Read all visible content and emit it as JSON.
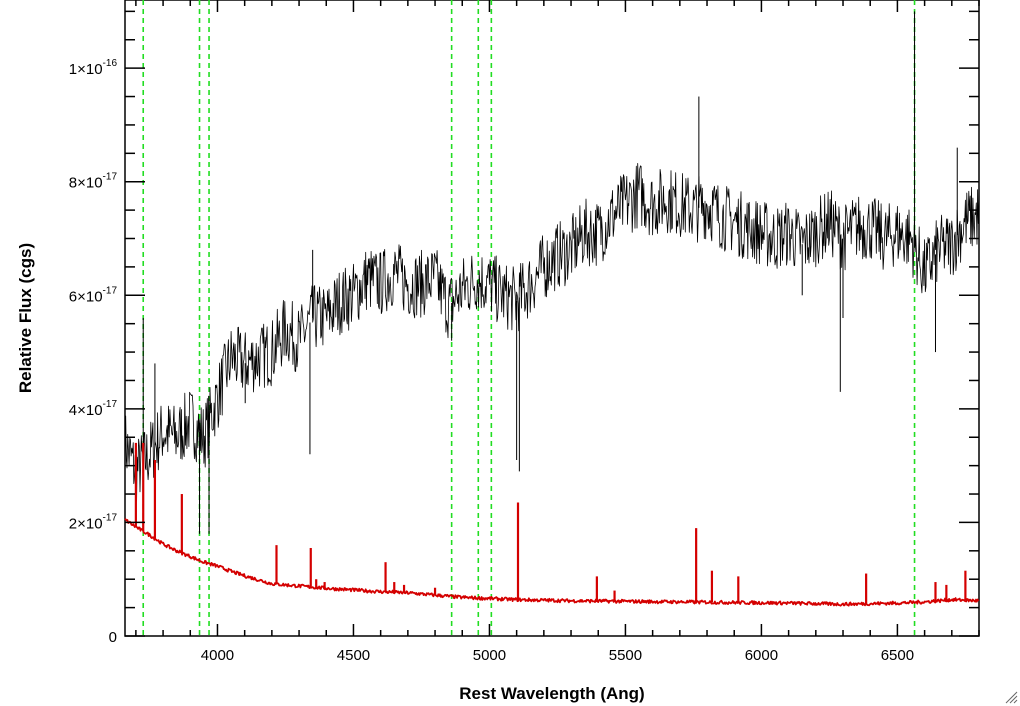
{
  "chart_data": {
    "type": "line",
    "xlabel": "Rest Wavelength (Ang)",
    "ylabel": "Relative Flux (cgs)",
    "xlim": [
      3660,
      6800
    ],
    "ylim": [
      0,
      1.12e-16
    ],
    "x_ticks": [
      {
        "value": 4000,
        "label": "4000"
      },
      {
        "value": 4500,
        "label": "4500"
      },
      {
        "value": 5000,
        "label": "5000"
      },
      {
        "value": 5500,
        "label": "5500"
      },
      {
        "value": 6000,
        "label": "6000"
      },
      {
        "value": 6500,
        "label": "6500"
      }
    ],
    "y_ticks": [
      {
        "value": 0,
        "mant": "0",
        "exp": ""
      },
      {
        "value": 2e-17,
        "mant": "2×10",
        "exp": "-17"
      },
      {
        "value": 4e-17,
        "mant": "4×10",
        "exp": "-17"
      },
      {
        "value": 6e-17,
        "mant": "6×10",
        "exp": "-17"
      },
      {
        "value": 8e-17,
        "mant": "8×10",
        "exp": "-17"
      },
      {
        "value": 1e-16,
        "mant": "1×10",
        "exp": "-16"
      }
    ],
    "vertical_lines": [
      3727,
      3934,
      3969,
      4861,
      4959,
      5007,
      6563
    ],
    "series": [
      {
        "color": "#000000",
        "points": [
          [
            3660,
            3.4e-17
          ],
          [
            3700,
            2.9e-17
          ],
          [
            3750,
            3.2e-17
          ],
          [
            3800,
            3.6e-17
          ],
          [
            3850,
            3.5e-17
          ],
          [
            3900,
            3.8e-17
          ],
          [
            3950,
            3.5e-17
          ],
          [
            4000,
            4.2e-17
          ],
          [
            4050,
            4.9e-17
          ],
          [
            4100,
            4.8e-17
          ],
          [
            4150,
            4.9e-17
          ],
          [
            4200,
            5e-17
          ],
          [
            4250,
            5.4e-17
          ],
          [
            4300,
            5.2e-17
          ],
          [
            4350,
            5.6e-17
          ],
          [
            4400,
            5.6e-17
          ],
          [
            4450,
            5.9e-17
          ],
          [
            4500,
            6e-17
          ],
          [
            4550,
            6.3e-17
          ],
          [
            4600,
            6.2e-17
          ],
          [
            4650,
            6.4e-17
          ],
          [
            4700,
            6.2e-17
          ],
          [
            4750,
            6.2e-17
          ],
          [
            4800,
            6.3e-17
          ],
          [
            4850,
            5.8e-17
          ],
          [
            4900,
            6.1e-17
          ],
          [
            4950,
            6.3e-17
          ],
          [
            5000,
            6.2e-17
          ],
          [
            5050,
            6e-17
          ],
          [
            5100,
            5.9e-17
          ],
          [
            5150,
            6.2e-17
          ],
          [
            5200,
            6.5e-17
          ],
          [
            5250,
            6.7e-17
          ],
          [
            5300,
            6.8e-17
          ],
          [
            5350,
            7.1e-17
          ],
          [
            5400,
            7.1e-17
          ],
          [
            5450,
            7.4e-17
          ],
          [
            5500,
            7.6e-17
          ],
          [
            5550,
            7.8e-17
          ],
          [
            5600,
            7.6e-17
          ],
          [
            5650,
            7.7e-17
          ],
          [
            5700,
            7.6e-17
          ],
          [
            5750,
            7.5e-17
          ],
          [
            5800,
            7.6e-17
          ],
          [
            5850,
            7.4e-17
          ],
          [
            5900,
            7.3e-17
          ],
          [
            5950,
            7.2e-17
          ],
          [
            6000,
            7.1e-17
          ],
          [
            6050,
            7e-17
          ],
          [
            6100,
            7.1e-17
          ],
          [
            6150,
            6.9e-17
          ],
          [
            6200,
            7.1e-17
          ],
          [
            6250,
            7.3e-17
          ],
          [
            6300,
            7e-17
          ],
          [
            6350,
            7.2e-17
          ],
          [
            6400,
            7.2e-17
          ],
          [
            6450,
            7e-17
          ],
          [
            6500,
            7.1e-17
          ],
          [
            6550,
            7e-17
          ],
          [
            6600,
            6.4e-17
          ],
          [
            6650,
            6.8e-17
          ],
          [
            6700,
            6.9e-17
          ],
          [
            6750,
            7.3e-17
          ],
          [
            6800,
            7.4e-17
          ]
        ],
        "features": [
          [
            3700,
            2.6e-17
          ],
          [
            3727,
            5.6e-17
          ],
          [
            3770,
            4.8e-17
          ],
          [
            3934,
            1.8e-17
          ],
          [
            3969,
            1.8e-17
          ],
          [
            4102,
            4.1e-17
          ],
          [
            4340,
            3.2e-17
          ],
          [
            4350,
            6.8e-17
          ],
          [
            4861,
            5.2e-17
          ],
          [
            5100,
            3.1e-17
          ],
          [
            5110,
            2.9e-17
          ],
          [
            5770,
            9.5e-17
          ],
          [
            6150,
            6e-17
          ],
          [
            6290,
            4.3e-17
          ],
          [
            6300,
            5.6e-17
          ],
          [
            6563,
            1.1e-16
          ],
          [
            6640,
            5e-17
          ],
          [
            6720,
            8.6e-17
          ]
        ]
      },
      {
        "color": "#d40000",
        "points": [
          [
            3660,
            2.05e-17
          ],
          [
            3700,
            1.92e-17
          ],
          [
            3750,
            1.78e-17
          ],
          [
            3800,
            1.62e-17
          ],
          [
            3850,
            1.5e-17
          ],
          [
            3900,
            1.4e-17
          ],
          [
            3950,
            1.3e-17
          ],
          [
            4000,
            1.23e-17
          ],
          [
            4050,
            1.14e-17
          ],
          [
            4100,
            1.06e-17
          ],
          [
            4150,
            9.9e-18
          ],
          [
            4200,
            9.2e-18
          ],
          [
            4300,
            8.8e-18
          ],
          [
            4400,
            8.4e-18
          ],
          [
            4500,
            8.1e-18
          ],
          [
            4600,
            7.8e-18
          ],
          [
            4700,
            7.6e-18
          ],
          [
            4800,
            7.2e-18
          ],
          [
            4900,
            6.8e-18
          ],
          [
            5000,
            6.6e-18
          ],
          [
            5100,
            6.4e-18
          ],
          [
            5300,
            6.2e-18
          ],
          [
            5500,
            6.1e-18
          ],
          [
            5700,
            6e-18
          ],
          [
            5900,
            5.9e-18
          ],
          [
            6100,
            5.8e-18
          ],
          [
            6300,
            5.6e-18
          ],
          [
            6500,
            5.8e-18
          ],
          [
            6600,
            6e-18
          ],
          [
            6700,
            6.4e-18
          ],
          [
            6800,
            6.2e-18
          ]
        ],
        "features": [
          [
            3700,
            3.4e-17
          ],
          [
            3727,
            3.4e-17
          ],
          [
            3770,
            3.1e-17
          ],
          [
            3869,
            2.5e-17
          ],
          [
            4217,
            1.6e-17
          ],
          [
            4343,
            1.55e-17
          ],
          [
            4363,
            1e-17
          ],
          [
            4394,
            9.5e-18
          ],
          [
            4618,
            1.3e-17
          ],
          [
            4650,
            9.5e-18
          ],
          [
            4686,
            9e-18
          ],
          [
            4800,
            8.5e-18
          ],
          [
            5105,
            2.35e-17
          ],
          [
            5395,
            1.05e-17
          ],
          [
            5460,
            8e-18
          ],
          [
            5760,
            1.9e-17
          ],
          [
            5818,
            1.15e-17
          ],
          [
            5915,
            1.05e-17
          ],
          [
            6385,
            1.1e-17
          ],
          [
            6640,
            9.5e-18
          ],
          [
            6680,
            9e-18
          ],
          [
            6750,
            1.15e-17
          ]
        ]
      }
    ]
  }
}
